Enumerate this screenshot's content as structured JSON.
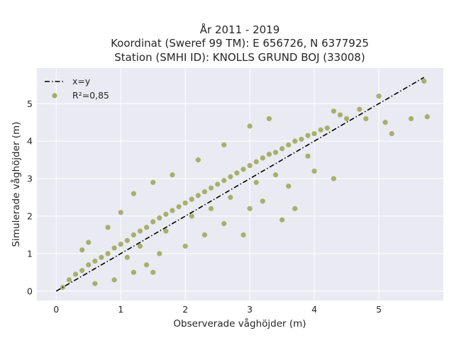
{
  "chart_data": {
    "type": "scatter",
    "title_lines": [
      "År 2011 - 2019",
      "Koordinat (Sweref 99 TM): E 656726, N 6377925",
      "Station (SMHI ID): KNOLLS GRUND BOJ (33008)"
    ],
    "xlabel": "Observerade våghöjder (m)",
    "ylabel": "Simulerade våghöjder (m)",
    "xlim": [
      -0.3,
      6.0
    ],
    "ylim": [
      -0.25,
      5.95
    ],
    "x_ticks": [
      0,
      1,
      2,
      3,
      4,
      5
    ],
    "y_ticks": [
      0,
      1,
      2,
      3,
      4,
      5
    ],
    "grid": true,
    "legend_position": "top-left",
    "legend": [
      {
        "name": "x=y",
        "kind": "line"
      },
      {
        "name": "R²=0,85",
        "kind": "marker"
      }
    ],
    "reference_line": {
      "name": "x=y",
      "x": [
        0,
        5.7
      ],
      "y": [
        0,
        5.7
      ]
    },
    "series": [
      {
        "name": "R²=0,85",
        "points": [
          [
            0.1,
            0.1
          ],
          [
            0.2,
            0.3
          ],
          [
            0.3,
            0.45
          ],
          [
            0.4,
            0.55
          ],
          [
            0.5,
            0.7
          ],
          [
            0.6,
            0.8
          ],
          [
            0.7,
            0.9
          ],
          [
            0.8,
            1.0
          ],
          [
            0.9,
            1.15
          ],
          [
            1.0,
            1.25
          ],
          [
            1.1,
            1.35
          ],
          [
            1.2,
            1.5
          ],
          [
            1.3,
            1.6
          ],
          [
            1.4,
            1.7
          ],
          [
            1.5,
            1.85
          ],
          [
            1.6,
            1.95
          ],
          [
            1.7,
            2.05
          ],
          [
            1.8,
            2.15
          ],
          [
            1.9,
            2.25
          ],
          [
            2.0,
            2.35
          ],
          [
            2.1,
            2.45
          ],
          [
            2.2,
            2.55
          ],
          [
            2.3,
            2.65
          ],
          [
            2.4,
            2.75
          ],
          [
            2.5,
            2.85
          ],
          [
            2.6,
            2.95
          ],
          [
            2.7,
            3.05
          ],
          [
            2.8,
            3.15
          ],
          [
            2.9,
            3.25
          ],
          [
            3.0,
            3.35
          ],
          [
            3.1,
            3.45
          ],
          [
            3.2,
            3.55
          ],
          [
            3.3,
            3.65
          ],
          [
            3.4,
            3.7
          ],
          [
            3.5,
            3.8
          ],
          [
            3.6,
            3.9
          ],
          [
            3.7,
            4.0
          ],
          [
            3.8,
            4.05
          ],
          [
            3.9,
            4.15
          ],
          [
            4.0,
            4.2
          ],
          [
            4.1,
            4.3
          ],
          [
            4.2,
            4.35
          ],
          [
            4.4,
            4.7
          ],
          [
            4.5,
            4.6
          ],
          [
            4.7,
            4.85
          ],
          [
            4.8,
            4.6
          ],
          [
            5.0,
            5.2
          ],
          [
            5.1,
            4.5
          ],
          [
            5.2,
            4.2
          ],
          [
            5.5,
            4.6
          ],
          [
            5.7,
            5.6
          ],
          [
            5.75,
            4.65
          ],
          [
            0.4,
            1.1
          ],
          [
            0.5,
            1.3
          ],
          [
            0.8,
            1.7
          ],
          [
            1.0,
            2.1
          ],
          [
            1.2,
            2.6
          ],
          [
            1.5,
            2.9
          ],
          [
            1.8,
            3.1
          ],
          [
            2.2,
            3.5
          ],
          [
            2.6,
            3.9
          ],
          [
            3.0,
            4.4
          ],
          [
            3.3,
            4.6
          ],
          [
            4.3,
            4.8
          ],
          [
            0.9,
            0.3
          ],
          [
            1.2,
            0.5
          ],
          [
            1.4,
            0.7
          ],
          [
            1.6,
            1.0
          ],
          [
            2.0,
            1.2
          ],
          [
            2.3,
            1.5
          ],
          [
            2.6,
            1.8
          ],
          [
            3.0,
            2.2
          ],
          [
            3.2,
            2.4
          ],
          [
            3.6,
            2.8
          ],
          [
            4.0,
            3.2
          ],
          [
            4.3,
            3.0
          ],
          [
            1.5,
            0.5
          ],
          [
            2.9,
            1.5
          ],
          [
            3.5,
            1.9
          ],
          [
            3.7,
            2.2
          ],
          [
            0.6,
            0.2
          ],
          [
            1.1,
            0.9
          ],
          [
            1.3,
            1.2
          ],
          [
            1.7,
            1.6
          ],
          [
            2.1,
            2.0
          ],
          [
            2.4,
            2.2
          ],
          [
            2.7,
            2.5
          ],
          [
            3.1,
            2.9
          ],
          [
            3.4,
            3.1
          ],
          [
            3.9,
            3.6
          ]
        ]
      }
    ],
    "colors": {
      "plot_background": "#eaeaf2",
      "grid": "#ffffff",
      "marker": "#96a04a",
      "line": "#000000",
      "text": "#262626"
    }
  }
}
